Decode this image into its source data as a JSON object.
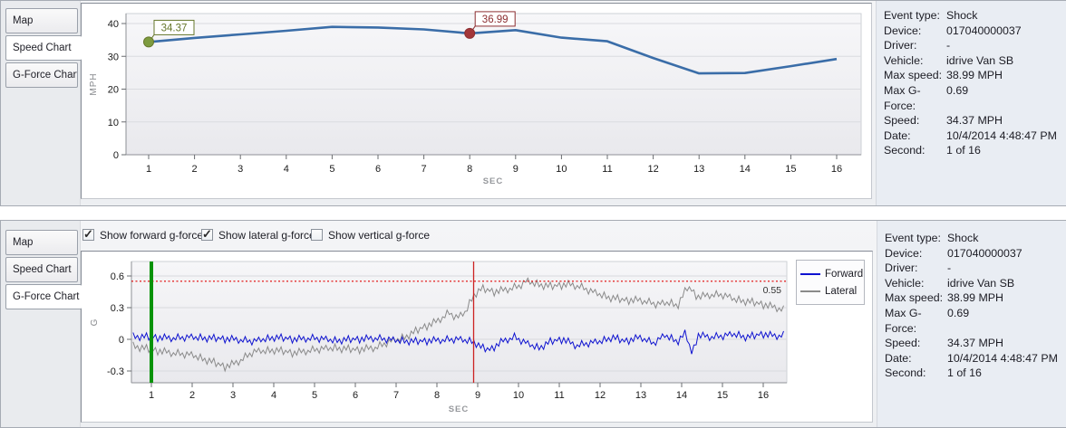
{
  "panels": {
    "tabs": [
      "Map",
      "Speed Chart",
      "G-Force Chart"
    ],
    "top_active_tab": "Speed Chart",
    "bottom_active_tab": "G-Force Chart"
  },
  "info": {
    "rows": [
      {
        "label": "Event type:",
        "value": "Shock"
      },
      {
        "label": "Device:",
        "value": "017040000037"
      },
      {
        "label": "Driver:",
        "value": "-"
      },
      {
        "label": "Vehicle:",
        "value": "idrive Van SB"
      },
      {
        "label": "Max speed:",
        "value": "38.99 MPH"
      },
      {
        "label": "Max G-Force:",
        "value": "0.69"
      },
      {
        "label": "Speed:",
        "value": "34.37 MPH"
      },
      {
        "label": "Date:",
        "value": "10/4/2014 4:48:47 PM"
      },
      {
        "label": "Second:",
        "value": "1 of 16"
      }
    ]
  },
  "chart_data": [
    {
      "id": "speed",
      "type": "line",
      "title": "Speed Chart",
      "xlabel": "SEC",
      "ylabel": "MPH",
      "x": [
        1,
        2,
        3,
        4,
        5,
        6,
        7,
        8,
        9,
        10,
        11,
        12,
        13,
        14,
        15,
        16
      ],
      "values": [
        34.37,
        35.6,
        36.7,
        37.8,
        38.99,
        38.8,
        38.2,
        36.99,
        38.0,
        35.7,
        34.6,
        29.5,
        24.8,
        24.9,
        27.0,
        29.2
      ],
      "ylim": [
        0,
        43
      ],
      "yticks": [
        0,
        10,
        20,
        30,
        40
      ],
      "xticks": [
        1,
        2,
        3,
        4,
        5,
        6,
        7,
        8,
        9,
        10,
        11,
        12,
        13,
        14,
        15,
        16
      ],
      "grid": true,
      "line_color": "#3a6da8",
      "markers": [
        {
          "x": 1,
          "label": "34.37",
          "color": "#7d9b3f",
          "border": "#66772b"
        },
        {
          "x": 8,
          "label": "36.99",
          "color": "#a33639",
          "border": "#8c2e31"
        }
      ]
    },
    {
      "id": "gforce",
      "type": "line",
      "title": "G-Force Chart",
      "xlabel": "SEC",
      "ylabel": "G",
      "ylim": [
        -0.41,
        0.74
      ],
      "yticks": [
        -0.3,
        0,
        0.3,
        0.6
      ],
      "xticks": [
        1,
        2,
        3,
        4,
        5,
        6,
        7,
        8,
        9,
        10,
        11,
        12,
        13,
        14,
        15,
        16
      ],
      "x_range": [
        0.55,
        16.5
      ],
      "grid": true,
      "legend_position": "right",
      "threshold": {
        "value": 0.55,
        "label": "0.55",
        "color": "#e00000"
      },
      "event_line": {
        "x": 1,
        "color": "#089308"
      },
      "cursor_line": {
        "x": 8.9,
        "color": "#cc2222"
      },
      "checkboxes": [
        {
          "label": "Show forward g-force",
          "checked": true
        },
        {
          "label": "Show lateral g-force",
          "checked": true
        },
        {
          "label": "Show vertical g-force",
          "checked": false
        }
      ],
      "series": [
        {
          "name": "Lateral",
          "color": "#8a8a8a",
          "noise_amp": 0.04,
          "keyframes": [
            [
              0.55,
              -0.06
            ],
            [
              1.0,
              -0.1
            ],
            [
              1.5,
              -0.13
            ],
            [
              2.0,
              -0.15
            ],
            [
              2.4,
              -0.2
            ],
            [
              2.8,
              -0.26
            ],
            [
              3.1,
              -0.22
            ],
            [
              3.5,
              -0.12
            ],
            [
              4.0,
              -0.1
            ],
            [
              4.5,
              -0.13
            ],
            [
              5.0,
              -0.1
            ],
            [
              5.5,
              -0.08
            ],
            [
              6.0,
              -0.1
            ],
            [
              6.5,
              -0.08
            ],
            [
              6.8,
              -0.03
            ],
            [
              7.2,
              0.02
            ],
            [
              7.6,
              0.1
            ],
            [
              8.0,
              0.17
            ],
            [
              8.3,
              0.25
            ],
            [
              8.5,
              0.2
            ],
            [
              8.7,
              0.26
            ],
            [
              8.9,
              0.42
            ],
            [
              9.1,
              0.48
            ],
            [
              9.4,
              0.45
            ],
            [
              9.7,
              0.47
            ],
            [
              10.0,
              0.5
            ],
            [
              10.2,
              0.55
            ],
            [
              10.5,
              0.52
            ],
            [
              10.8,
              0.5
            ],
            [
              11.2,
              0.52
            ],
            [
              11.5,
              0.5
            ],
            [
              11.8,
              0.45
            ],
            [
              12.2,
              0.4
            ],
            [
              12.6,
              0.37
            ],
            [
              13.0,
              0.37
            ],
            [
              13.4,
              0.33
            ],
            [
              13.7,
              0.35
            ],
            [
              13.9,
              0.32
            ],
            [
              14.15,
              0.5
            ],
            [
              14.4,
              0.4
            ],
            [
              14.7,
              0.42
            ],
            [
              15.0,
              0.42
            ],
            [
              15.3,
              0.38
            ],
            [
              15.6,
              0.36
            ],
            [
              16.0,
              0.33
            ],
            [
              16.3,
              0.3
            ],
            [
              16.5,
              0.28
            ]
          ]
        },
        {
          "name": "Forward",
          "color": "#0e12d0",
          "noise_amp": 0.038,
          "keyframes": [
            [
              0.55,
              0.03
            ],
            [
              1.0,
              0.02
            ],
            [
              1.5,
              0.01
            ],
            [
              2.0,
              0.02
            ],
            [
              2.5,
              0.01
            ],
            [
              3.0,
              0.0
            ],
            [
              3.5,
              -0.02
            ],
            [
              4.0,
              0.02
            ],
            [
              4.5,
              0.0
            ],
            [
              5.0,
              0.01
            ],
            [
              5.5,
              -0.01
            ],
            [
              6.0,
              0.0
            ],
            [
              6.5,
              0.01
            ],
            [
              7.0,
              -0.01
            ],
            [
              7.5,
              -0.02
            ],
            [
              8.0,
              -0.01
            ],
            [
              8.5,
              0.0
            ],
            [
              8.9,
              -0.02
            ],
            [
              9.1,
              -0.08
            ],
            [
              9.3,
              -0.1
            ],
            [
              9.6,
              -0.02
            ],
            [
              9.9,
              0.02
            ],
            [
              10.2,
              -0.04
            ],
            [
              10.5,
              -0.08
            ],
            [
              10.8,
              -0.02
            ],
            [
              11.1,
              0.0
            ],
            [
              11.4,
              -0.06
            ],
            [
              11.7,
              -0.04
            ],
            [
              12.0,
              -0.02
            ],
            [
              12.3,
              0.02
            ],
            [
              12.6,
              -0.02
            ],
            [
              13.0,
              0.02
            ],
            [
              13.3,
              -0.04
            ],
            [
              13.6,
              0.04
            ],
            [
              13.9,
              -0.02
            ],
            [
              14.1,
              0.06
            ],
            [
              14.25,
              -0.14
            ],
            [
              14.4,
              0.04
            ],
            [
              14.7,
              0.02
            ],
            [
              15.0,
              0.03
            ],
            [
              15.3,
              0.05
            ],
            [
              15.6,
              0.02
            ],
            [
              16.0,
              0.05
            ],
            [
              16.3,
              0.03
            ],
            [
              16.5,
              0.04
            ]
          ]
        }
      ],
      "legend": [
        "Forward",
        "Lateral"
      ],
      "noise_pattern": [
        0.9,
        -0.55,
        0.25,
        -1.0,
        0.6,
        -0.3,
        1.0,
        -0.75,
        0.35,
        -0.15,
        0.7,
        -1.0,
        0.45,
        -0.6,
        0.95,
        -0.2,
        0.55,
        -0.85,
        0.15,
        -0.45,
        1.0,
        -0.35,
        0.3,
        -0.9,
        0.65,
        -0.1,
        0.8,
        -0.5,
        0.2,
        -0.7
      ]
    }
  ]
}
